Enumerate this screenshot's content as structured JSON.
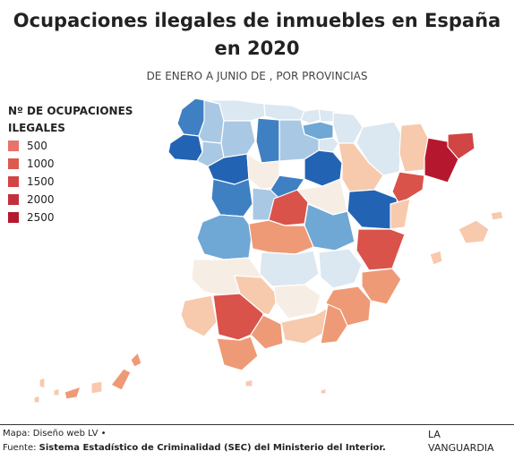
{
  "title": "Ocupaciones ilegales de inmuebles en España en 2020",
  "subtitle": "DE ENERO A JUNIO DE , POR PROVINCIAS",
  "legend": {
    "title": "Nº DE OCUPACIONES ILEGALES",
    "items": [
      {
        "label": "500",
        "color": "#e8736a"
      },
      {
        "label": "1000",
        "color": "#dc5a4f"
      },
      {
        "label": "1500",
        "color": "#d14544"
      },
      {
        "label": "2000",
        "color": "#c2313a"
      },
      {
        "label": "2500",
        "color": "#b5182e"
      }
    ]
  },
  "footer": {
    "credit": "Mapa: Diseño web LV •",
    "source_prefix": "Fuente: ",
    "source": "Sistema Estadístico de Criminalidad (SEC) del Ministerio del Interior.",
    "brand_line1": "LA",
    "brand_line2": "VANGUARDIA"
  },
  "color_scale": {
    "very_low": "#f6eee4",
    "low_light": "#dbe7f1",
    "low": "#a9c8e4",
    "mid_blue": "#6fa7d5",
    "high_blue": "#3f80c3",
    "top_blue": "#2363b4",
    "light_orange": "#f7c9ad",
    "orange": "#ef9a76",
    "red": "#d9534b",
    "dark_red": "#b5182e"
  }
}
